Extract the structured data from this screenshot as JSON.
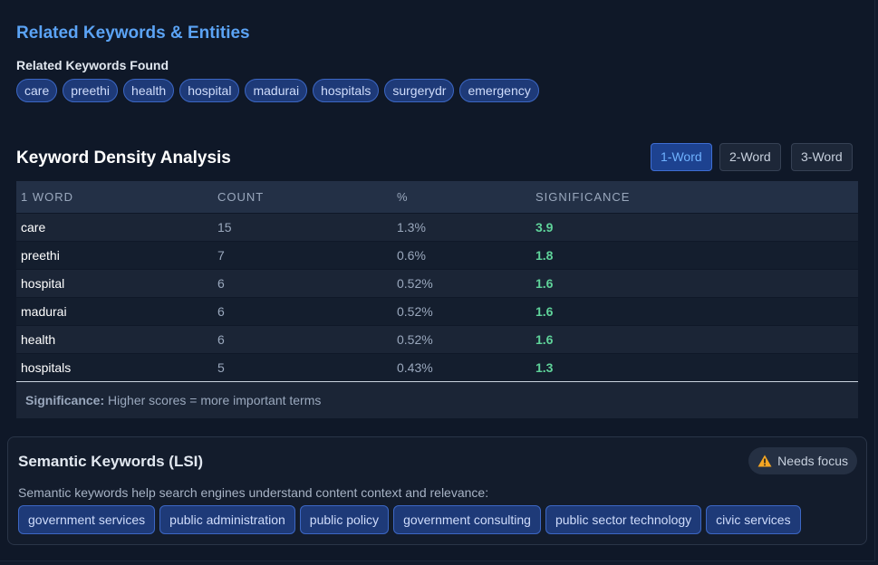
{
  "related": {
    "title": "Related Keywords & Entities",
    "found_label": "Related Keywords Found",
    "keywords": [
      "care",
      "preethi",
      "health",
      "hospital",
      "madurai",
      "hospitals",
      "surgerydr",
      "emergency"
    ]
  },
  "density": {
    "title": "Keyword Density Analysis",
    "tabs": [
      "1-Word",
      "2-Word",
      "3-Word"
    ],
    "active_tab": "1-Word",
    "columns": [
      "1 WORD",
      "COUNT",
      "%",
      "SIGNIFICANCE"
    ],
    "rows": [
      {
        "word": "care",
        "count": "15",
        "pct": "1.3%",
        "sig": "3.9"
      },
      {
        "word": "preethi",
        "count": "7",
        "pct": "0.6%",
        "sig": "1.8"
      },
      {
        "word": "hospital",
        "count": "6",
        "pct": "0.52%",
        "sig": "1.6"
      },
      {
        "word": "madurai",
        "count": "6",
        "pct": "0.52%",
        "sig": "1.6"
      },
      {
        "word": "health",
        "count": "6",
        "pct": "0.52%",
        "sig": "1.6"
      },
      {
        "word": "hospitals",
        "count": "5",
        "pct": "0.43%",
        "sig": "1.3"
      }
    ],
    "note_label": "Significance:",
    "note_text": " Higher scores = more important terms"
  },
  "lsi": {
    "title": "Semantic Keywords (LSI)",
    "badge": "Needs focus",
    "badge_icon": "warning-icon",
    "description": "Semantic keywords help search engines understand content context and relevance:",
    "keywords": [
      "government services",
      "public administration",
      "public policy",
      "government consulting",
      "public sector technology",
      "civic services"
    ]
  },
  "colors": {
    "accent": "#5ba3f5",
    "chip_bg": "#1e3a78",
    "significance": "#5fd39a",
    "warning": "#f5a623"
  }
}
